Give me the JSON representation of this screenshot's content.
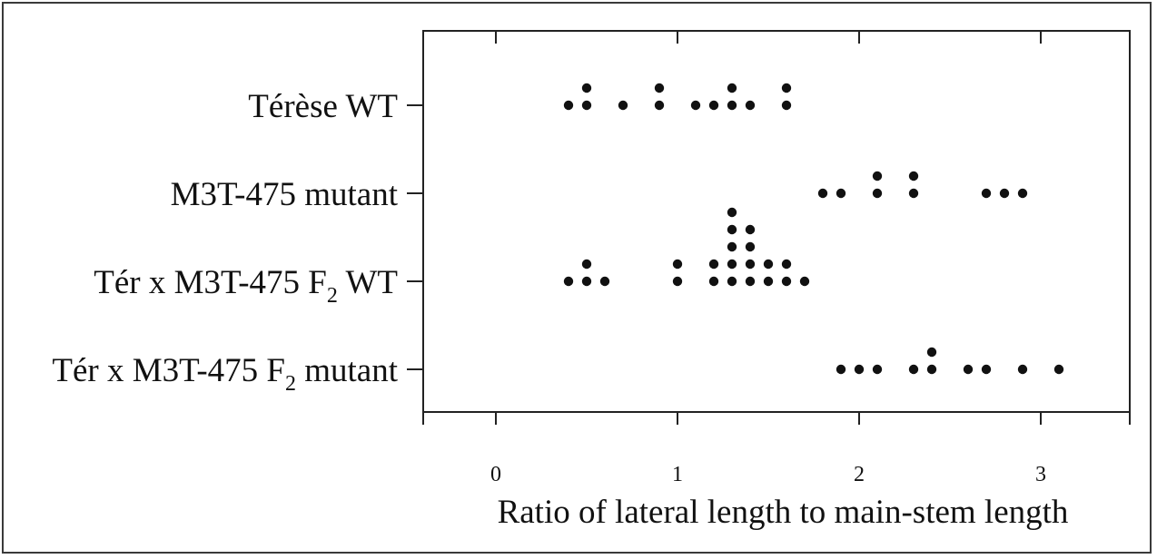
{
  "chart_data": {
    "type": "scatter",
    "title": "",
    "xlabel": "Ratio of lateral length to main-stem length",
    "ylabel": "",
    "xlim": [
      -0.4,
      3.5
    ],
    "x_ticks": [
      0,
      1,
      2,
      3
    ],
    "x_tick_labels": [
      "0",
      "1",
      "2",
      "3"
    ],
    "grid": false,
    "categories": [
      {
        "name": "Térèse WT",
        "sub": "",
        "suffix": ""
      },
      {
        "name": "M3T-475 mutant",
        "sub": "",
        "suffix": ""
      },
      {
        "name": "Tér x M3T-475 F",
        "sub": "2",
        "suffix": " WT"
      },
      {
        "name": "Tér x M3T-475 F",
        "sub": "2",
        "suffix": " mutant"
      }
    ],
    "series": [
      {
        "category": "Térèse WT",
        "values": [
          0.4,
          0.5,
          0.5,
          0.7,
          0.9,
          0.9,
          1.1,
          1.2,
          1.3,
          1.3,
          1.4,
          1.6,
          1.6
        ]
      },
      {
        "category": "M3T-475 mutant",
        "values": [
          1.8,
          1.9,
          2.1,
          2.1,
          2.3,
          2.3,
          2.7,
          2.8,
          2.9
        ]
      },
      {
        "category": "Tér x M3T-475 F2 WT",
        "values": [
          0.4,
          0.5,
          0.5,
          0.6,
          1.0,
          1.0,
          1.2,
          1.2,
          1.3,
          1.3,
          1.3,
          1.3,
          1.3,
          1.4,
          1.4,
          1.4,
          1.4,
          1.5,
          1.5,
          1.6,
          1.6,
          1.7
        ]
      },
      {
        "category": "Tér x M3T-475 F2 mutant",
        "values": [
          1.9,
          2.0,
          2.1,
          2.3,
          2.4,
          2.4,
          2.6,
          2.7,
          2.9,
          3.1
        ]
      }
    ]
  }
}
